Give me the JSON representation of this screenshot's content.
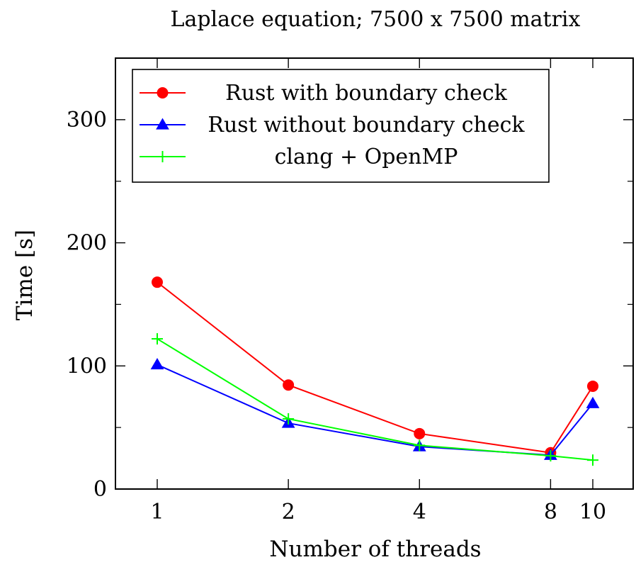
{
  "chart_data": {
    "type": "line",
    "title": "Laplace equation; 7500 x 7500 matrix",
    "xlabel": "Number of threads",
    "ylabel": "Time [s]",
    "x_scale": "log",
    "x": [
      1,
      2,
      4,
      8,
      10
    ],
    "x_tick_labels": [
      "1",
      "2",
      "4",
      "8",
      "10"
    ],
    "y_ticks": [
      0,
      100,
      200,
      300
    ],
    "y_minor_ticks": [
      50,
      150,
      250
    ],
    "ylim": [
      0,
      350
    ],
    "legend_position": "top-left",
    "grid": false,
    "series": [
      {
        "name": "Rust with boundary check",
        "values": [
          168,
          84.5,
          45,
          29.5,
          83.5
        ],
        "color": "#ff0000",
        "marker": "circle"
      },
      {
        "name": "Rust without boundary check",
        "values": [
          101,
          53.5,
          34.5,
          27.5,
          69.5
        ],
        "color": "#0000ff",
        "marker": "triangle"
      },
      {
        "name": "clang + OpenMP",
        "values": [
          122,
          57,
          35.5,
          27,
          23.5
        ],
        "color": "#00ff00",
        "marker": "plus"
      }
    ]
  }
}
